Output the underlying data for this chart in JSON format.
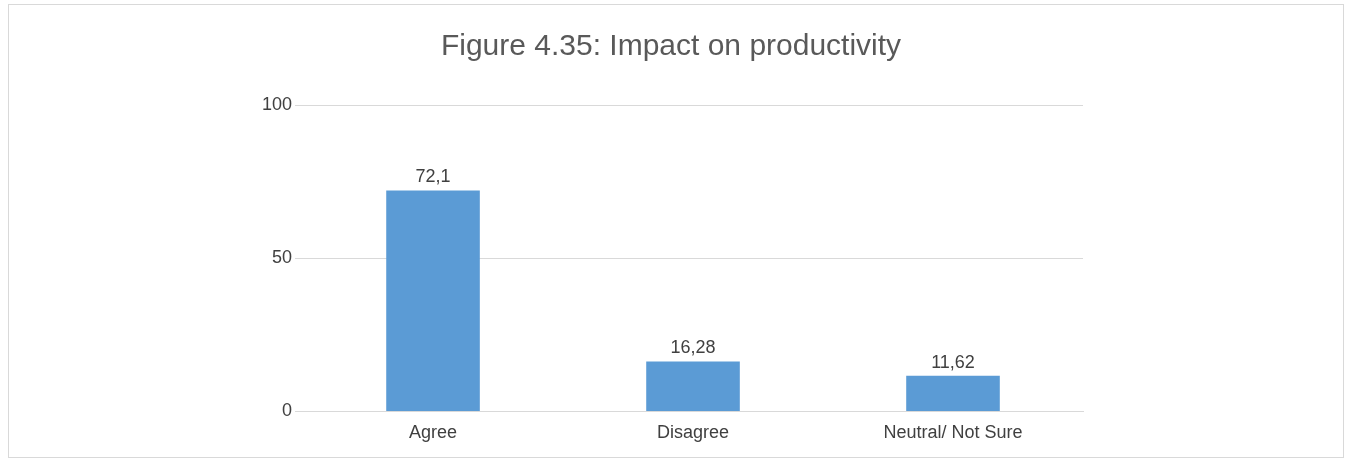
{
  "chart_data": {
    "type": "bar",
    "title": "Figure 4.35: Impact on productivity",
    "categories": [
      "Agree",
      "Disagree",
      "Neutral/ Not Sure"
    ],
    "values": [
      72.1,
      16.28,
      11.62
    ],
    "value_labels": [
      "72,1",
      "16,28",
      "11,62"
    ],
    "color": "#5b9bd5",
    "ylim": [
      0,
      100
    ],
    "yticks": [
      0,
      50,
      100
    ],
    "grid": "y"
  }
}
